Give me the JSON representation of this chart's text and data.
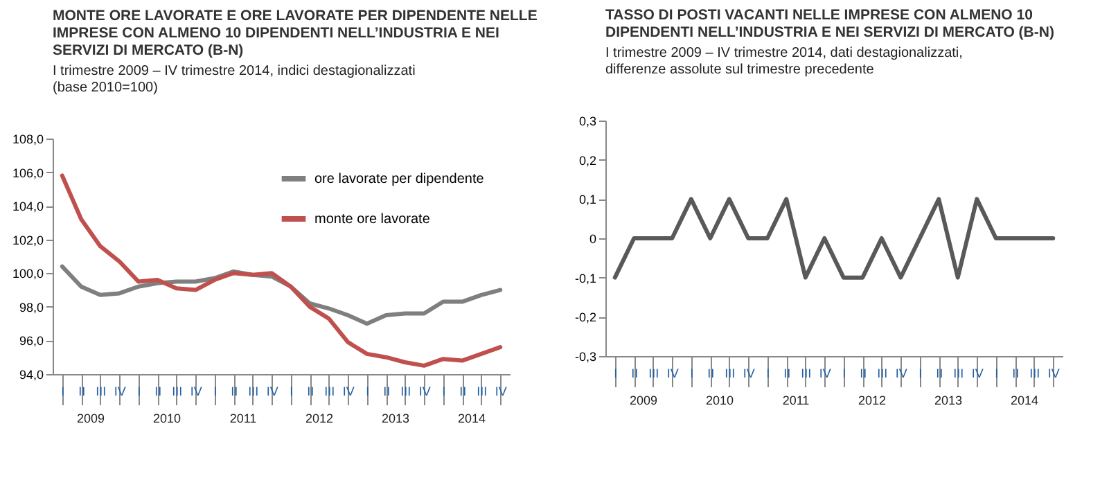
{
  "chart_data": [
    {
      "type": "line",
      "title": "MONTE ORE LAVORATE E ORE LAVORATE PER DIPENDENTE NELLE IMPRESE CON ALMENO 10 DIPENDENTI NELL’INDUSTRIA E NEI SERVIZI DI MERCATO (B-N)",
      "subtitle": "I trimestre 2009 – IV trimestre 2014, indici destagionalizzati (base 2010=100)",
      "categories": [
        "I",
        "II",
        "III",
        "IV",
        "I",
        "II",
        "III",
        "IV",
        "I",
        "II",
        "III",
        "IV",
        "I",
        "II",
        "III",
        "IV",
        "I",
        "II",
        "III",
        "IV",
        "I",
        "II",
        "III",
        "IV"
      ],
      "annotations": [
        "2009",
        "2010",
        "2011",
        "2012",
        "2013",
        "2014"
      ],
      "series": [
        {
          "name": "ore lavorate per dipendente",
          "color": "#7f7f7f",
          "values": [
            100.4,
            99.2,
            98.7,
            98.8,
            99.2,
            99.4,
            99.5,
            99.5,
            99.7,
            100.1,
            99.9,
            99.8,
            99.2,
            98.2,
            97.9,
            97.5,
            97.0,
            97.5,
            97.6,
            97.6,
            98.3,
            98.3,
            98.7,
            99.0
          ]
        },
        {
          "name": "monte ore lavorate",
          "color": "#c0504d",
          "values": [
            105.8,
            103.2,
            101.6,
            100.7,
            99.5,
            99.6,
            99.1,
            99.0,
            99.6,
            100.0,
            99.9,
            100.0,
            99.2,
            98.0,
            97.3,
            95.9,
            95.2,
            95.0,
            94.7,
            94.5,
            94.9,
            94.8,
            95.2,
            95.6
          ]
        }
      ],
      "ylim": [
        94,
        108
      ],
      "yticks": [
        {
          "value": 94,
          "label": "94,0"
        },
        {
          "value": 96,
          "label": "96,0"
        },
        {
          "value": 98,
          "label": "98,0"
        },
        {
          "value": 100,
          "label": "100,0"
        },
        {
          "value": 102,
          "label": "102,0"
        },
        {
          "value": 104,
          "label": "104,0"
        },
        {
          "value": 106,
          "label": "106,0"
        },
        {
          "value": 108,
          "label": "108,0"
        }
      ],
      "legend": "top right"
    },
    {
      "type": "line",
      "title": "TASSO DI POSTI VACANTI NELLE IMPRESE CON ALMENO 10 DIPENDENTI NELL’INDUSTRIA E NEI SERVIZI DI MERCATO (B-N)",
      "subtitle": "I trimestre 2009 – IV trimestre 2014, dati destagionalizzati, differenze assolute sul trimestre precedente",
      "categories": [
        "I",
        "II",
        "III",
        "IV",
        "I",
        "II",
        "III",
        "IV",
        "I",
        "II",
        "III",
        "IV",
        "I",
        "II",
        "III",
        "IV",
        "I",
        "II",
        "III",
        "IV",
        "I",
        "II",
        "III",
        "IV"
      ],
      "annotations": [
        "2009",
        "2010",
        "2011",
        "2012",
        "2013",
        "2014"
      ],
      "series": [
        {
          "color": "#595959",
          "values": [
            -0.1,
            0,
            0,
            0,
            0.1,
            0,
            0.1,
            0,
            0,
            0.1,
            -0.1,
            0,
            -0.1,
            -0.1,
            0,
            -0.1,
            0,
            0.1,
            -0.1,
            0.1,
            0,
            0,
            0,
            0
          ]
        }
      ],
      "ylim": [
        -0.3,
        0.3
      ],
      "yticks": [
        {
          "value": -0.3,
          "label": "-0,3"
        },
        {
          "value": -0.2,
          "label": "-0,2"
        },
        {
          "value": -0.1,
          "label": "-0,1"
        },
        0,
        {
          "value": 0.1,
          "label": "0,1"
        },
        {
          "value": 0.2,
          "label": "0,2"
        },
        {
          "value": 0.3,
          "label": "0,3"
        }
      ]
    }
  ]
}
